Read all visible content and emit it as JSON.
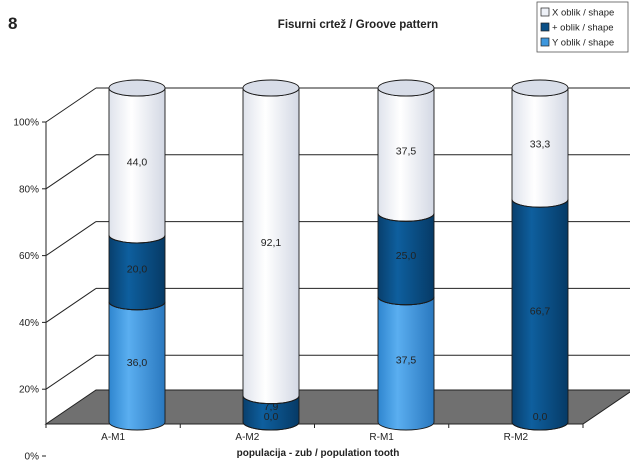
{
  "figure_number": "8",
  "chart_data": {
    "type": "bar",
    "stacked": true,
    "three_d": true,
    "bar_shape": "cylinder",
    "title": "Fisurni crtež / Groove pattern",
    "xlabel": "populacija - zub / population tooth",
    "ylabel": "",
    "ylim": [
      0,
      100
    ],
    "y_ticks": [
      "0%",
      "20%",
      "40%",
      "60%",
      "80%",
      "100%"
    ],
    "categories": [
      "A-M1",
      "A-M2",
      "R-M1",
      "R-M2"
    ],
    "grid": true,
    "legend_position": "top-right",
    "series": [
      {
        "name": "Y oblik / shape",
        "values": [
          36.0,
          0.0,
          37.5,
          0.0
        ],
        "labels": [
          "36,0",
          "0,0",
          "37,5",
          "0,0"
        ],
        "color": "#3e97dd"
      },
      {
        "name": "+ oblik / shape",
        "values": [
          20.0,
          7.9,
          25.0,
          66.7
        ],
        "labels": [
          "20,0",
          "7,9",
          "25,0",
          "66,7"
        ],
        "color": "#0a4f86"
      },
      {
        "name": "X oblik / shape",
        "values": [
          44.0,
          92.1,
          37.5,
          33.3
        ],
        "labels": [
          "44,0",
          "92,1",
          "37,5",
          "33,3"
        ],
        "color": "#eef1f7"
      }
    ],
    "legend_order": [
      "X oblik / shape",
      "+ oblik / shape",
      "Y oblik / shape"
    ],
    "floor_color": "#707070"
  }
}
